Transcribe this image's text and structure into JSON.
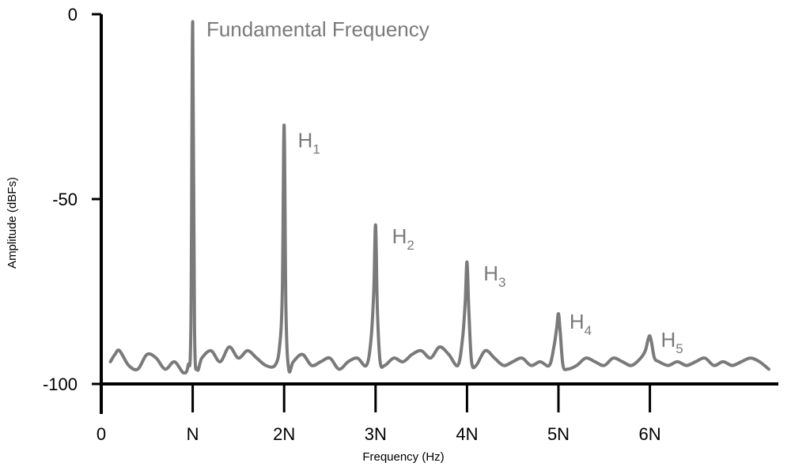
{
  "chart_data": {
    "type": "line",
    "title": "",
    "xlabel": "Frequency (Hz)",
    "ylabel": "Amplitude (dBFs)",
    "xlim": [
      0,
      7.3
    ],
    "ylim": [
      -100,
      0
    ],
    "x_ticks": [
      {
        "value": 0,
        "label": "0"
      },
      {
        "value": 1,
        "label": "N"
      },
      {
        "value": 2,
        "label": "2N"
      },
      {
        "value": 3,
        "label": "3N"
      },
      {
        "value": 4,
        "label": "4N"
      },
      {
        "value": 5,
        "label": "5N"
      },
      {
        "value": 6,
        "label": "6N"
      }
    ],
    "y_ticks": [
      {
        "value": 0,
        "label": "0"
      },
      {
        "value": -50,
        "label": "-50"
      },
      {
        "value": -100,
        "label": "-100"
      }
    ],
    "grid": false,
    "colors": {
      "line": "#7a7a7a",
      "axis": "#000000",
      "label": "#7a7a7a"
    },
    "series": [
      {
        "x": [
          0.1,
          0.15,
          0.2,
          0.3,
          0.4,
          0.5,
          0.6,
          0.7,
          0.8,
          0.9,
          0.95,
          0.98,
          1.0,
          1.02,
          1.05,
          1.1,
          1.2,
          1.3,
          1.4,
          1.5,
          1.6,
          1.7,
          1.8,
          1.9,
          1.95,
          1.98,
          2.0,
          2.02,
          2.05,
          2.1,
          2.2,
          2.3,
          2.4,
          2.5,
          2.6,
          2.7,
          2.8,
          2.9,
          2.95,
          2.98,
          3.0,
          3.02,
          3.05,
          3.1,
          3.2,
          3.3,
          3.4,
          3.5,
          3.6,
          3.7,
          3.8,
          3.9,
          3.95,
          3.98,
          4.0,
          4.02,
          4.05,
          4.1,
          4.2,
          4.3,
          4.4,
          4.5,
          4.6,
          4.7,
          4.8,
          4.9,
          4.95,
          4.98,
          5.0,
          5.02,
          5.05,
          5.1,
          5.2,
          5.3,
          5.4,
          5.5,
          5.6,
          5.7,
          5.8,
          5.9,
          5.95,
          5.98,
          6.0,
          6.02,
          6.05,
          6.1,
          6.2,
          6.3,
          6.4,
          6.5,
          6.6,
          6.7,
          6.8,
          6.9,
          7.0,
          7.1,
          7.2,
          7.3
        ],
        "y": [
          -94,
          -92,
          -91,
          -95,
          -96,
          -92,
          -93,
          -96,
          -94,
          -97,
          -95,
          -85,
          -2,
          -85,
          -96,
          -93,
          -91,
          -94,
          -90,
          -93,
          -91,
          -93,
          -95,
          -95,
          -90,
          -75,
          -30,
          -80,
          -96,
          -94,
          -92,
          -95,
          -94,
          -93,
          -96,
          -94,
          -93,
          -95,
          -88,
          -75,
          -57,
          -80,
          -94,
          -95,
          -93,
          -94,
          -92,
          -91,
          -93,
          -90,
          -92,
          -95,
          -88,
          -78,
          -67,
          -80,
          -94,
          -95,
          -91,
          -93,
          -95,
          -94,
          -93,
          -95,
          -94,
          -95,
          -90,
          -85,
          -81,
          -86,
          -95,
          -96,
          -95,
          -93,
          -94,
          -95,
          -93,
          -94,
          -95,
          -93,
          -91,
          -88,
          -87,
          -89,
          -93,
          -94,
          -95,
          -94,
          -95,
          -94,
          -93,
          -95,
          -94,
          -95,
          -94,
          -93,
          -94,
          -96
        ]
      }
    ],
    "annotations": [
      {
        "name": "fundamental",
        "text": "Fundamental Frequency",
        "sub": "",
        "x": 1.15,
        "y": -6
      },
      {
        "name": "h1",
        "text": "H",
        "sub": "1",
        "x": 2.15,
        "y": -36
      },
      {
        "name": "h2",
        "text": "H",
        "sub": "2",
        "x": 3.18,
        "y": -62
      },
      {
        "name": "h3",
        "text": "H",
        "sub": "3",
        "x": 4.18,
        "y": -72
      },
      {
        "name": "h4",
        "text": "H",
        "sub": "4",
        "x": 5.12,
        "y": -85
      },
      {
        "name": "h5",
        "text": "H",
        "sub": "5",
        "x": 6.12,
        "y": -90
      }
    ]
  }
}
